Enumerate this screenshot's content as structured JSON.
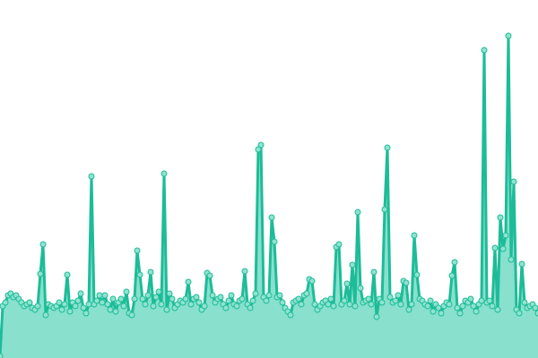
{
  "chart_data": {
    "type": "area",
    "title": "",
    "xlabel": "",
    "ylabel": "",
    "ylim": [
      0,
      400
    ],
    "grid": false,
    "legend": "none",
    "colors": {
      "line": "#1dbc98",
      "fill": "#88e0cd",
      "point_fill": "#8fe3cf",
      "point_stroke": "#1dbc98"
    },
    "values": [
      2,
      58,
      62,
      70,
      72,
      68,
      70,
      66,
      62,
      58,
      60,
      62,
      56,
      54,
      58,
      94,
      127,
      48,
      60,
      58,
      56,
      58,
      62,
      54,
      60,
      93,
      52,
      62,
      58,
      64,
      72,
      56,
      50,
      60,
      203,
      60,
      64,
      70,
      62,
      70,
      60,
      54,
      66,
      52,
      62,
      66,
      58,
      74,
      50,
      48,
      66,
      120,
      93,
      66,
      60,
      70,
      96,
      58,
      68,
      74,
      60,
      206,
      54,
      72,
      66,
      56,
      60,
      64,
      62,
      66,
      85,
      60,
      66,
      68,
      62,
      54,
      58,
      95,
      92,
      70,
      62,
      66,
      68,
      60,
      56,
      64,
      70,
      60,
      58,
      64,
      66,
      97,
      60,
      56,
      64,
      72,
      233,
      238,
      68,
      64,
      70,
      157,
      130,
      68,
      70,
      62,
      56,
      52,
      48,
      62,
      64,
      66,
      60,
      70,
      72,
      88,
      86,
      60,
      54,
      58,
      62,
      64,
      60,
      66,
      58,
      124,
      127,
      60,
      64,
      83,
      60,
      104,
      58,
      163,
      78,
      62,
      64,
      66,
      60,
      96,
      46,
      66,
      62,
      166,
      235,
      68,
      62,
      64,
      70,
      60,
      86,
      84,
      54,
      60,
      137,
      93,
      66,
      64,
      60,
      58,
      64,
      52,
      60,
      56,
      50,
      58,
      62,
      60,
      92,
      107,
      56,
      50,
      58,
      64,
      62,
      66,
      58,
      52,
      60,
      64,
      344,
      62,
      64,
      58,
      123,
      54,
      157,
      122,
      137,
      360,
      110,
      197,
      54,
      50,
      105,
      62,
      56,
      58,
      60,
      56,
      50
    ]
  }
}
